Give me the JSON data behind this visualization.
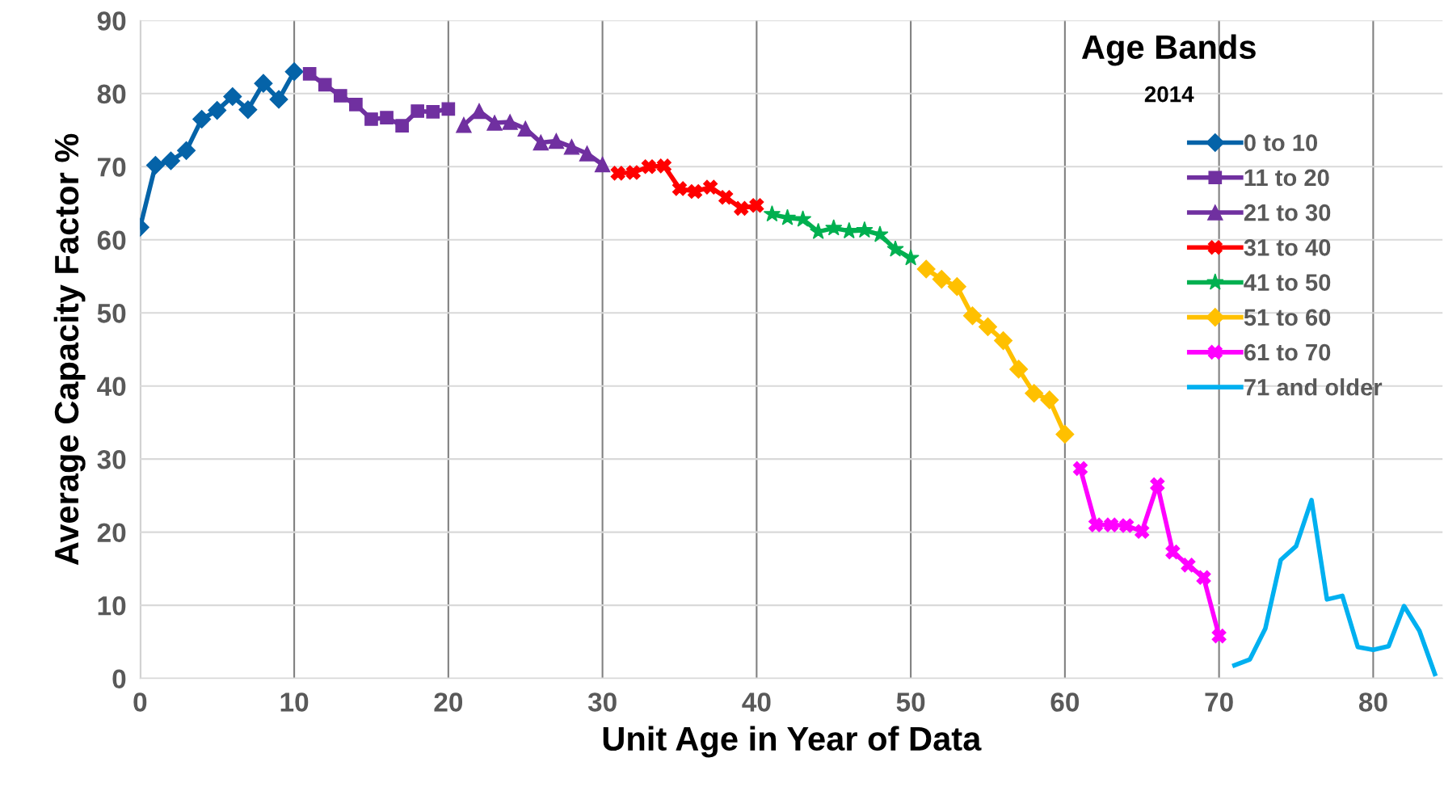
{
  "chart_data": {
    "type": "line",
    "xlabel": "Unit Age in Year of Data",
    "ylabel": "Average Capacity Factor %",
    "legend_title": "Age Bands",
    "subtitle": "2014",
    "xlim": [
      0,
      84.5
    ],
    "xticks": [
      0,
      10,
      20,
      30,
      40,
      50,
      60,
      70,
      80
    ],
    "ylim": [
      0,
      90
    ],
    "yticks": [
      0,
      10,
      20,
      30,
      40,
      50,
      60,
      70,
      80,
      90
    ],
    "grid": true,
    "legend": "top right",
    "series": [
      {
        "name": "0 to 10",
        "color": "#0563a8",
        "marker": "diamond",
        "x": [
          0,
          1,
          2,
          3,
          4,
          5,
          6,
          7,
          8,
          9,
          10
        ],
        "values": [
          61.7,
          70.2,
          70.8,
          72.2,
          76.5,
          77.7,
          79.6,
          77.8,
          81.4,
          79.2,
          83.0
        ]
      },
      {
        "name": "11 to 20",
        "color": "#7030a0",
        "marker": "square",
        "x": [
          11,
          12,
          13,
          14,
          15,
          16,
          17,
          18,
          19,
          20
        ],
        "values": [
          82.7,
          81.2,
          79.7,
          78.5,
          76.5,
          76.7,
          75.6,
          77.6,
          77.5,
          77.9
        ]
      },
      {
        "name": "21 to 30",
        "color": "#7030a0",
        "marker": "triangle",
        "x": [
          21,
          22,
          23,
          24,
          25,
          26,
          27,
          28,
          29,
          30
        ],
        "values": [
          75.7,
          77.6,
          76.0,
          76.1,
          75.2,
          73.3,
          73.5,
          72.7,
          71.8,
          70.3
        ]
      },
      {
        "name": "31 to 40",
        "color": "#ff0000",
        "marker": "cross",
        "x": [
          31,
          32,
          33,
          34,
          35,
          36,
          37,
          38,
          39,
          40
        ],
        "values": [
          69.1,
          69.2,
          70.0,
          70.1,
          67.0,
          66.6,
          67.2,
          65.8,
          64.3,
          64.7
        ]
      },
      {
        "name": "41 to 50",
        "color": "#00b050",
        "marker": "star",
        "x": [
          41,
          42,
          43,
          44,
          45,
          46,
          47,
          48,
          49,
          50
        ],
        "values": [
          63.5,
          63.0,
          62.8,
          61.1,
          61.6,
          61.2,
          61.3,
          60.7,
          58.7,
          57.5
        ]
      },
      {
        "name": "51 to 60",
        "color": "#ffc000",
        "marker": "diamond",
        "x": [
          51,
          52,
          53,
          54,
          55,
          56,
          57,
          58,
          59,
          60
        ],
        "values": [
          56.0,
          54.6,
          53.6,
          49.6,
          48.1,
          46.2,
          42.3,
          39.0,
          38.1,
          33.4
        ]
      },
      {
        "name": "61 to 70",
        "color": "#ff00ff",
        "marker": "cross",
        "x": [
          61,
          62,
          63,
          64,
          65,
          66,
          67,
          68,
          69,
          70
        ],
        "values": [
          28.7,
          21.0,
          21.0,
          20.9,
          20.1,
          26.5,
          17.3,
          15.5,
          13.8,
          5.8
        ]
      },
      {
        "name": "71 and older",
        "color": "#00b0f0",
        "marker": "none",
        "x": [
          71,
          72,
          73,
          74,
          75,
          76,
          77,
          78,
          79,
          80,
          81,
          82,
          83,
          84
        ],
        "values": [
          1.8,
          2.6,
          6.8,
          16.2,
          18.1,
          24.4,
          10.8,
          11.3,
          4.3,
          3.9,
          4.4,
          9.9,
          6.5,
          0.6
        ]
      }
    ]
  }
}
